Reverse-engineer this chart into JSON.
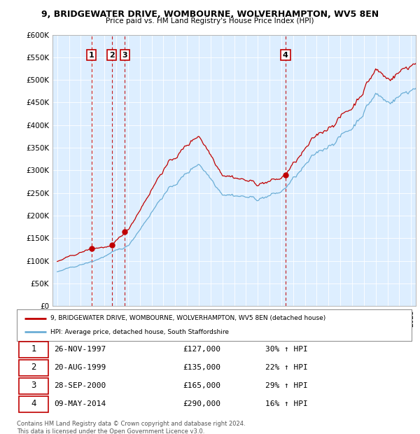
{
  "title": "9, BRIDGEWATER DRIVE, WOMBOURNE, WOLVERHAMPTON, WV5 8EN",
  "subtitle": "Price paid vs. HM Land Registry's House Price Index (HPI)",
  "ylim": [
    0,
    600000
  ],
  "yticks": [
    0,
    50000,
    100000,
    150000,
    200000,
    250000,
    300000,
    350000,
    400000,
    450000,
    500000,
    550000,
    600000
  ],
  "ytick_labels": [
    "£0",
    "£50K",
    "£100K",
    "£150K",
    "£200K",
    "£250K",
    "£300K",
    "£350K",
    "£400K",
    "£450K",
    "£500K",
    "£550K",
    "£600K"
  ],
  "hpi_color": "#6baed6",
  "sale_color": "#c00000",
  "vline_color": "#c00000",
  "plot_bg_color": "#ddeeff",
  "background_color": "#ffffff",
  "grid_color": "#ffffff",
  "sales": [
    {
      "date_num": 1997.9,
      "price": 127000,
      "label": "1"
    },
    {
      "date_num": 1999.63,
      "price": 135000,
      "label": "2"
    },
    {
      "date_num": 2000.74,
      "price": 165000,
      "label": "3"
    },
    {
      "date_num": 2014.35,
      "price": 290000,
      "label": "4"
    }
  ],
  "legend_sale_label": "9, BRIDGEWATER DRIVE, WOMBOURNE, WOLVERHAMPTON, WV5 8EN (detached house)",
  "legend_hpi_label": "HPI: Average price, detached house, South Staffordshire",
  "table_data": [
    [
      "1",
      "26-NOV-1997",
      "£127,000",
      "30% ↑ HPI"
    ],
    [
      "2",
      "20-AUG-1999",
      "£135,000",
      "22% ↑ HPI"
    ],
    [
      "3",
      "28-SEP-2000",
      "£165,000",
      "29% ↑ HPI"
    ],
    [
      "4",
      "09-MAY-2014",
      "£290,000",
      "16% ↑ HPI"
    ]
  ],
  "footer": "Contains HM Land Registry data © Crown copyright and database right 2024.\nThis data is licensed under the Open Government Licence v3.0."
}
